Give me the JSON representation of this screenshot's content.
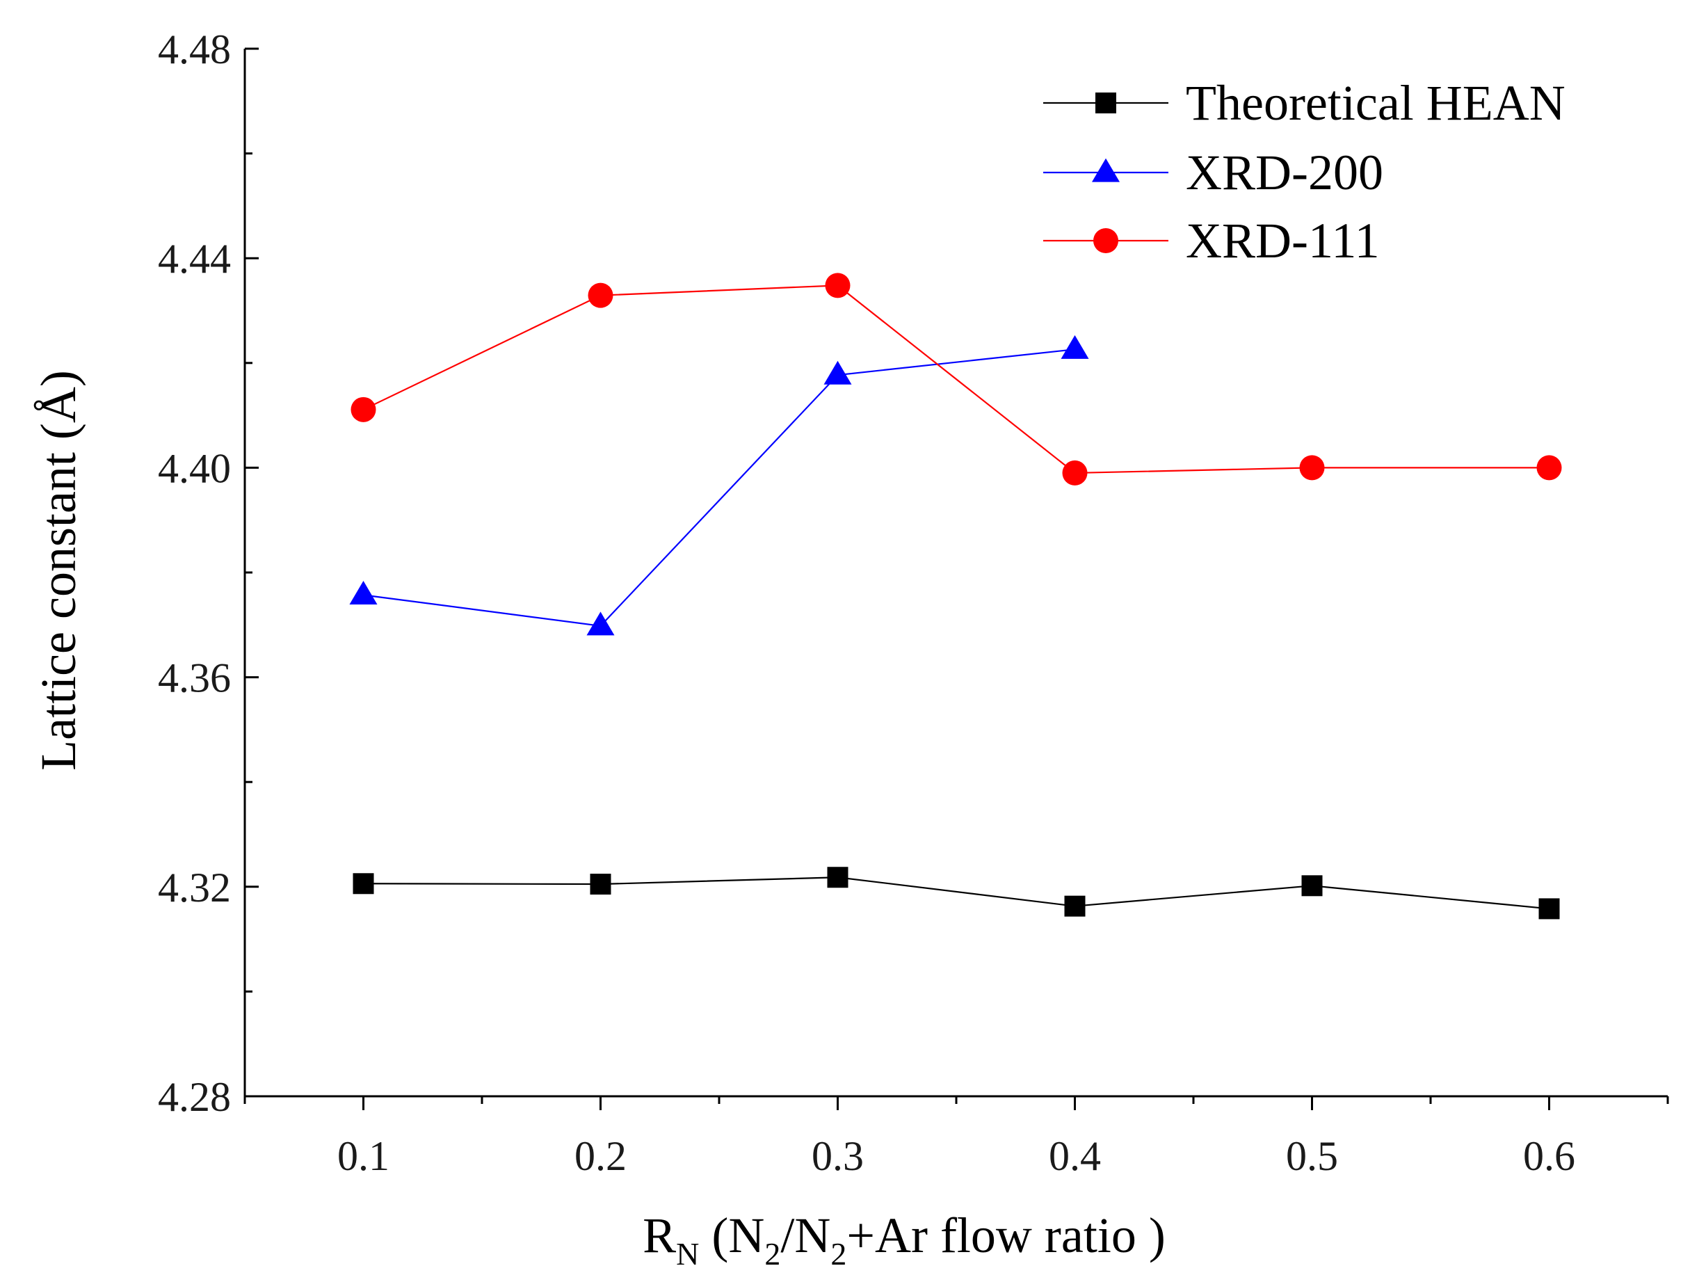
{
  "chart_data": {
    "type": "line",
    "xlabel": {
      "base": "R",
      "sub": "N",
      "text_1": " (N",
      "sub_1": "2",
      "text_2": "/N",
      "sub_2": "2",
      "text_3": "+Ar flow ratio )"
    },
    "ylabel": "Lattice constant (Å)",
    "xlim": [
      0.05,
      0.65
    ],
    "ylim": [
      4.28,
      4.48
    ],
    "x_ticks": [
      "0.1",
      "0.2",
      "0.3",
      "0.4",
      "0.5",
      "0.6"
    ],
    "x_tick_values": [
      0.1,
      0.2,
      0.3,
      0.4,
      0.5,
      0.6
    ],
    "x_minor_ticks": [
      0.05,
      0.15,
      0.25,
      0.35,
      0.45,
      0.55,
      0.65
    ],
    "y_ticks": [
      "4.28",
      "4.32",
      "4.36",
      "4.40",
      "4.44",
      "4.48"
    ],
    "y_tick_values": [
      4.28,
      4.32,
      4.36,
      4.4,
      4.44,
      4.48
    ],
    "y_minor_ticks": [
      4.3,
      4.34,
      4.38,
      4.42,
      4.46
    ],
    "grid": false,
    "legend_position": "top-right",
    "series": [
      {
        "name": "Theoretical HEAN",
        "marker": "square",
        "color": "#000000",
        "x": [
          0.1,
          0.2,
          0.3,
          0.4,
          0.5,
          0.6
        ],
        "values": [
          4.3206,
          4.3205,
          4.3218,
          4.3163,
          4.3202,
          4.3158
        ]
      },
      {
        "name": "XRD-200",
        "marker": "triangle",
        "color": "#0000ff",
        "x": [
          0.1,
          0.2,
          0.3,
          0.4
        ],
        "values": [
          4.3757,
          4.3698,
          4.4177,
          4.4226
        ]
      },
      {
        "name": "XRD-111",
        "marker": "circle",
        "color": "#ff0000",
        "x": [
          0.1,
          0.2,
          0.3,
          0.4,
          0.5,
          0.6
        ],
        "values": [
          4.4111,
          4.4329,
          4.4348,
          4.399,
          4.4,
          4.4
        ]
      }
    ]
  }
}
